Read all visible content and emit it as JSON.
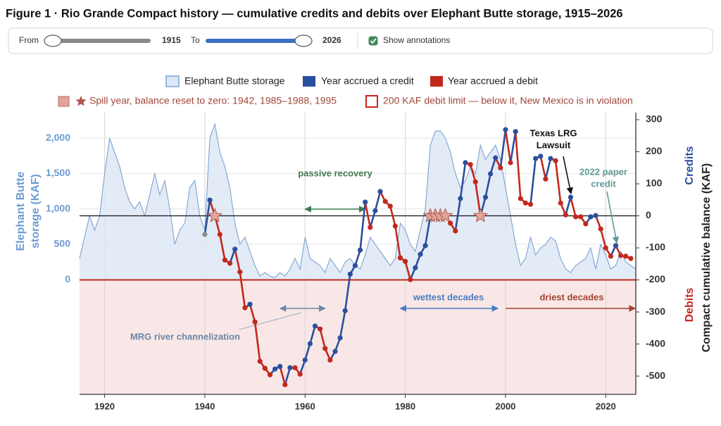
{
  "title": "Figure 1 · Rio Grande Compact history — cumulative credits and debits over Elephant Butte storage, 1915–2026",
  "controls": {
    "from_label": "From",
    "from_value": 1915,
    "to_label": "To",
    "to_value": 2026,
    "annotations_label": "Show annotations",
    "annotations_checked": true
  },
  "chart_data": {
    "type": "combo",
    "xlim": [
      1915,
      2026
    ],
    "xticks": [
      1920,
      1940,
      1960,
      1980,
      2000,
      2020
    ],
    "ylim": [
      -1620,
      2360
    ],
    "yticks": [
      0,
      500,
      {
        "value": 1000,
        "label": "1,000"
      },
      {
        "value": 1500,
        "label": "1,500"
      },
      {
        "value": 2000,
        "label": "2,000"
      }
    ],
    "y2lim": [
      -557,
      322
    ],
    "y2ticks": [
      300,
      200,
      100,
      0,
      -100,
      -200,
      -300,
      -400,
      -500
    ],
    "y_label": [
      "Elephant Butte",
      "storage (KAF)"
    ],
    "y2_label": "Compact cumulative balance (KAF)",
    "y2_top_label": "Credits",
    "y2_bottom_label": "Debits",
    "grid": true,
    "x": [
      1915,
      1916,
      1917,
      1918,
      1919,
      1920,
      1921,
      1922,
      1923,
      1924,
      1925,
      1926,
      1927,
      1928,
      1929,
      1930,
      1931,
      1932,
      1933,
      1934,
      1935,
      1936,
      1937,
      1938,
      1939,
      1940,
      1941,
      1942,
      1943,
      1944,
      1945,
      1946,
      1947,
      1948,
      1949,
      1950,
      1951,
      1952,
      1953,
      1954,
      1955,
      1956,
      1957,
      1958,
      1959,
      1960,
      1961,
      1962,
      1963,
      1964,
      1965,
      1966,
      1967,
      1968,
      1969,
      1970,
      1971,
      1972,
      1973,
      1974,
      1975,
      1976,
      1977,
      1978,
      1979,
      1980,
      1981,
      1982,
      1983,
      1984,
      1985,
      1986,
      1987,
      1988,
      1989,
      1990,
      1991,
      1992,
      1993,
      1994,
      1995,
      1996,
      1997,
      1998,
      1999,
      2000,
      2001,
      2002,
      2003,
      2004,
      2005,
      2006,
      2007,
      2008,
      2009,
      2010,
      2011,
      2012,
      2013,
      2014,
      2015,
      2016,
      2017,
      2018,
      2019,
      2020,
      2021,
      2022,
      2023,
      2024,
      2025,
      2026
    ],
    "series": [
      {
        "name": "Elephant Butte storage",
        "color": "#dde8f5",
        "line_color": "#7ea3d3",
        "values": [
          300,
          600,
          900,
          700,
          900,
          1500,
          2000,
          1800,
          1600,
          1300,
          1100,
          1000,
          1100,
          900,
          1200,
          1500,
          1200,
          1400,
          1000,
          500,
          700,
          800,
          1300,
          1400,
          900,
          700,
          2000,
          2200,
          1800,
          1600,
          1300,
          800,
          500,
          600,
          400,
          200,
          50,
          100,
          50,
          30,
          100,
          50,
          150,
          300,
          150,
          600,
          300,
          250,
          200,
          100,
          300,
          200,
          100,
          250,
          300,
          200,
          150,
          350,
          600,
          500,
          400,
          300,
          200,
          300,
          800,
          700,
          500,
          400,
          700,
          1000,
          1900,
          2100,
          2100,
          2000,
          1800,
          1500,
          1300,
          1400,
          1600,
          1500,
          1900,
          1700,
          1800,
          1900,
          1700,
          1300,
          900,
          500,
          200,
          300,
          600,
          350,
          450,
          500,
          600,
          550,
          300,
          150,
          100,
          200,
          250,
          300,
          450,
          150,
          500,
          350,
          150,
          200,
          400,
          250,
          200,
          150
        ]
      },
      {
        "axis": "y2",
        "credit_name": "Year accrued a credit",
        "credit_color": "#2b4f9e",
        "debit_name": "Year accrued a debit",
        "debit_color": "#c3281d",
        "first_color": "#8e8e8e",
        "values": [
          null,
          null,
          null,
          null,
          null,
          null,
          null,
          null,
          null,
          null,
          null,
          null,
          null,
          null,
          null,
          null,
          null,
          null,
          null,
          null,
          null,
          null,
          null,
          null,
          null,
          -58,
          49,
          0,
          -58,
          -138,
          -148,
          -104,
          -175,
          -287,
          -276,
          -331,
          -454,
          -476,
          -496,
          -478,
          -470,
          -527,
          -474,
          -474,
          -494,
          -450,
          -399,
          -344,
          -353,
          -414,
          -450,
          -423,
          -381,
          -296,
          -182,
          -155,
          -107,
          43,
          -36,
          16,
          76,
          45,
          30,
          -32,
          -131,
          -142,
          -199,
          -162,
          -120,
          -93,
          0,
          0,
          0,
          0,
          -23,
          -47,
          54,
          166,
          160,
          106,
          0,
          58,
          131,
          181,
          150,
          269,
          166,
          263,
          54,
          40,
          36,
          179,
          186,
          115,
          179,
          172,
          40,
          3,
          58,
          -3,
          -3,
          -25,
          -3,
          1,
          -41,
          -100,
          -126,
          -93,
          -124,
          -126,
          -133,
          null
        ]
      }
    ],
    "spill_years": [
      1942,
      1985,
      1986,
      1987,
      1988,
      1995
    ],
    "spill_label": "Spill year, balance reset to zero: 1942, 1985–1988, 1995",
    "spill_color": "#e3a49b",
    "debit_limit": -200,
    "limit_label": "200 KAF debit limit — below it, New Mexico is in violation",
    "limit_color": "#c3281d",
    "limit_fill": "#f8e7e6",
    "annotations": [
      {
        "text": [
          "passive recovery"
        ],
        "color": "#3f7a4f"
      },
      {
        "text": [
          "MRG river channelization"
        ],
        "color": "#6b86a8"
      },
      {
        "text": [
          "wettest decades"
        ],
        "color": "#4a7cc2"
      },
      {
        "text": [
          "driest decades"
        ],
        "color": "#a5432f"
      },
      {
        "text": [
          "Texas LRG",
          "Lawsuit"
        ],
        "color": "#111111"
      },
      {
        "text": [
          "2022 paper",
          "credit"
        ],
        "color": "#5f9a97"
      }
    ]
  }
}
